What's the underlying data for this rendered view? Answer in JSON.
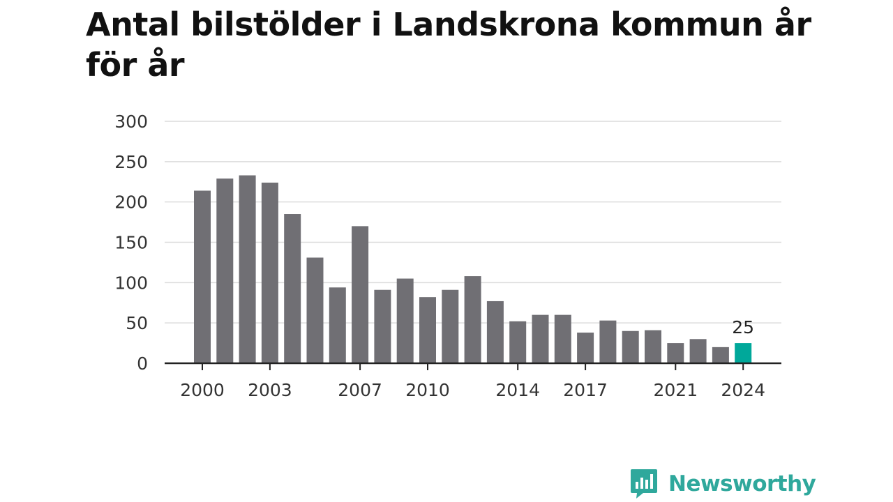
{
  "title": "Antal bilstölder i Landskrona kommun år för år",
  "colors": {
    "bar": "#706f74",
    "highlight": "#00a89a",
    "grid": "#dcdcdc",
    "axis": "#222222",
    "text": "#333333",
    "brand": "#2fa89c"
  },
  "chart_data": {
    "type": "bar",
    "title": "Antal bilstölder i Landskrona kommun år för år",
    "xlabel": "",
    "ylabel": "",
    "ylim": [
      0,
      300
    ],
    "yticks": [
      0,
      50,
      100,
      150,
      200,
      250,
      300
    ],
    "grid": true,
    "categories": [
      "2000",
      "2001",
      "2002",
      "2003",
      "2004",
      "2005",
      "2006",
      "2007",
      "2008",
      "2009",
      "2010",
      "2011",
      "2012",
      "2013",
      "2014",
      "2015",
      "2016",
      "2017",
      "2018",
      "2019",
      "2020",
      "2021",
      "2022",
      "2023",
      "2024"
    ],
    "xtick_labels": [
      "2000",
      "2003",
      "2007",
      "2010",
      "2014",
      "2017",
      "2021",
      "2024"
    ],
    "values": [
      214,
      229,
      233,
      224,
      185,
      131,
      94,
      170,
      91,
      105,
      82,
      91,
      108,
      77,
      52,
      60,
      60,
      38,
      53,
      40,
      41,
      25,
      30,
      20,
      25
    ],
    "highlight": {
      "category": "2024",
      "value": 25,
      "label": "25"
    }
  },
  "brand": {
    "name": "Newsworthy",
    "icon": "newsworthy-logo-icon"
  }
}
